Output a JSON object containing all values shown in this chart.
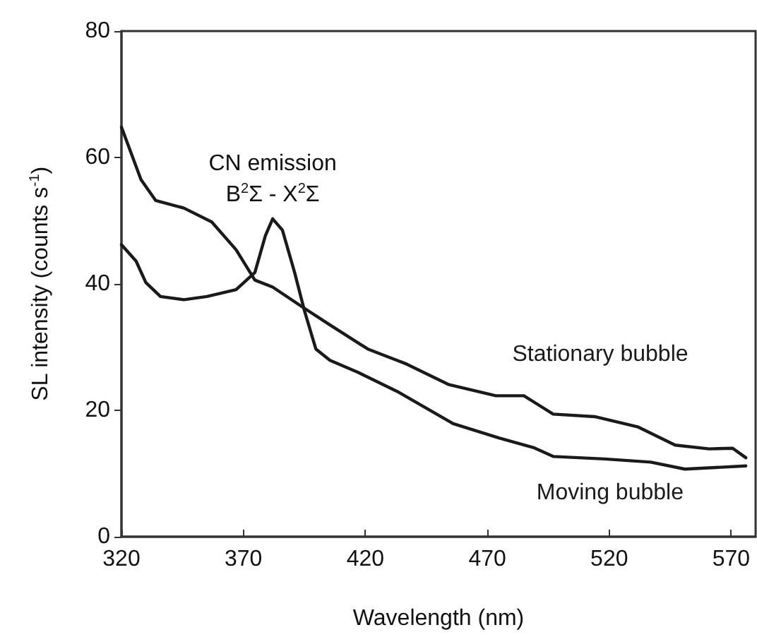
{
  "chart_data": {
    "type": "line",
    "xlabel": "Wavelength (nm)",
    "ylabel": "SL intensity (counts s$^{-1}$)",
    "xlim": [
      320,
      580
    ],
    "xticks": [
      320,
      370,
      420,
      470,
      520,
      570
    ],
    "ylim": [
      0,
      80
    ],
    "yticks": [
      0,
      20,
      40,
      60,
      80
    ],
    "grid": false,
    "legend": false,
    "marker": "none",
    "line_style": "solid",
    "annotations": [
      {
        "text": "CN emission\nB$^{2}$Σ - X$^{2}$Σ",
        "x": 382,
        "y": 50.3
      }
    ],
    "series": [
      {
        "name": "Stationary bubble",
        "color": "#1a1a1a",
        "x": [
          320,
          328,
          334,
          345.6,
          357,
          367,
          374.7,
          382,
          394,
          405.5,
          421,
          433,
          437,
          454,
          473.5,
          485,
          497,
          514,
          531.6,
          547,
          561,
          570.6,
          576
        ],
        "values": [
          64.8,
          56.5,
          53.2,
          52,
          49.8,
          45.4,
          40.6,
          39.5,
          36.4,
          33.5,
          29.7,
          27.9,
          27.3,
          24.1,
          22.3,
          22.3,
          19.4,
          19,
          17.4,
          14.5,
          13.9,
          14,
          12.5
        ]
      },
      {
        "name": "Moving bubble",
        "color": "#1a1a1a",
        "x": [
          320,
          326,
          330,
          336,
          345.6,
          355,
          367,
          374.7,
          379,
          382,
          386,
          391,
          395,
          399.7,
          405.5,
          417,
          425,
          433,
          456,
          475,
          489,
          497,
          518,
          537,
          551,
          576
        ],
        "values": [
          46.2,
          43.6,
          40.2,
          38,
          37.5,
          38,
          39.1,
          41.8,
          47.6,
          50.3,
          48.5,
          41.8,
          35.8,
          29.7,
          27.9,
          26,
          24.5,
          23,
          17.9,
          15.6,
          14.1,
          12.7,
          12.3,
          11.8,
          10.7,
          11.2
        ]
      }
    ]
  }
}
